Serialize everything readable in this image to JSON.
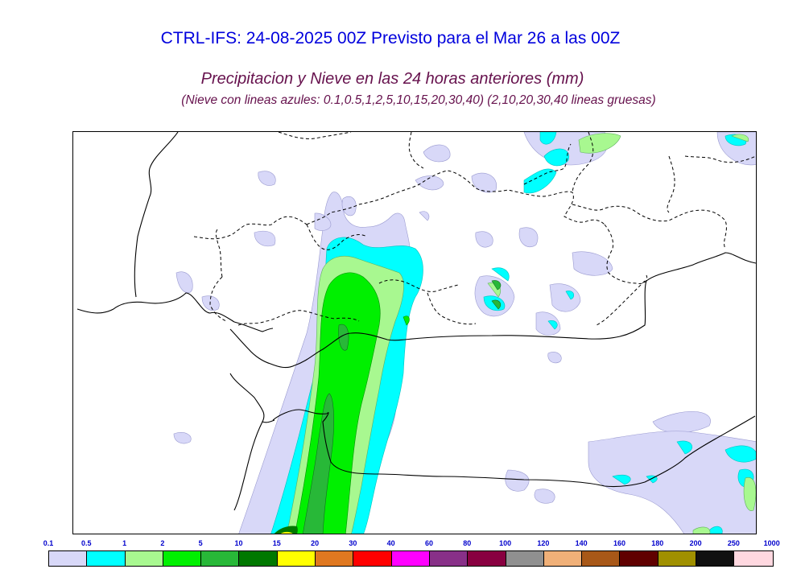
{
  "title": "CTRL-IFS: 24-08-2025 00Z Previsto para el Mar 26 a las 00Z",
  "subtitle": "Precipitacion y Nieve en las 24 horas anteriores (mm)",
  "note": "(Nieve con lineas azules: 0.1,0.5,1,2,5,10,15,20,30,40)  (2,10,20,30,40 lineas gruesas)",
  "legend": {
    "labels": [
      "0.1",
      "0.5",
      "1",
      "2",
      "5",
      "10",
      "15",
      "20",
      "30",
      "40",
      "60",
      "80",
      "100",
      "120",
      "140",
      "160",
      "180",
      "200",
      "250",
      "1000"
    ],
    "colors": [
      "#d8d8f8",
      "#00ffff",
      "#a8f890",
      "#00f000",
      "#28b838",
      "#007800",
      "#ffff00",
      "#e07820",
      "#ff0000",
      "#ff00ff",
      "#883088",
      "#880040",
      "#909090",
      "#f0b078",
      "#a85818",
      "#600000",
      "#a09000",
      "#101010",
      "#ffd8e0"
    ]
  }
}
